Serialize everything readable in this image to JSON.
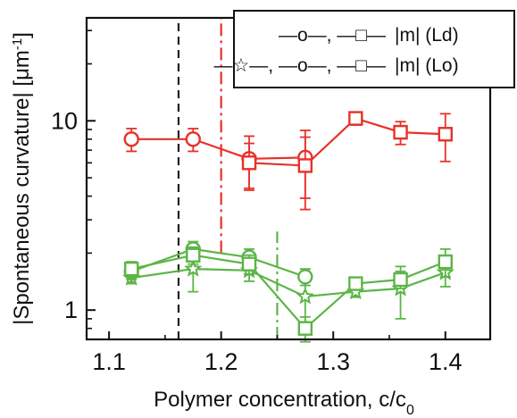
{
  "chart_data": {
    "type": "line",
    "title": "",
    "xlabel": "Polymer concentration, c/c",
    "xlabel_subscript": "0",
    "ylabel": "|Spontaneous curvature| [μm",
    "ylabel_superscript": "-1",
    "ylabel_close": "]",
    "xlim": [
      1.08,
      1.44
    ],
    "ylim": [
      0.7,
      35
    ],
    "y_scale": "log",
    "x_ticks": [
      1.1,
      1.2,
      1.3,
      1.4
    ],
    "x_tick_labels": [
      "1.1",
      "1.2",
      "1.3",
      "1.4"
    ],
    "y_ticks": [
      1,
      10
    ],
    "y_tick_labels": [
      "1",
      "10"
    ],
    "grid": false,
    "legend_position": "top-right",
    "legend": [
      {
        "symbols_text": "—o—, —□—",
        "label": "|m| (Ld)",
        "color": "#e8312a"
      },
      {
        "symbols_text": "—☆—, —o—, —□—",
        "label": "|m| (Lo)",
        "color": "#5cb547"
      }
    ],
    "vertical_lines": [
      {
        "x": 1.162,
        "color": "#222222",
        "style": "dashed",
        "y_from": 0.7,
        "y_to": 35
      },
      {
        "x": 1.2,
        "color": "#e8312a",
        "style": "dashdot",
        "y_from": 2.0,
        "y_to": 35
      },
      {
        "x": 1.25,
        "color": "#5cb547",
        "style": "dashdot",
        "y_from": 0.7,
        "y_to": 2.6
      }
    ],
    "series": [
      {
        "marker": "circle",
        "color": "#e8312a",
        "x": [
          1.12,
          1.175,
          1.225,
          1.275
        ],
        "y": [
          8.0,
          8.0,
          6.3,
          6.4
        ],
        "err": [
          1.1,
          1.1,
          2.0,
          2.5
        ]
      },
      {
        "marker": "square",
        "color": "#e8312a",
        "x": [
          1.225,
          1.275,
          1.32,
          1.36,
          1.4
        ],
        "y": [
          6.0,
          5.8,
          10.3,
          8.7,
          8.5
        ],
        "err": [
          1.6,
          2.4,
          0.8,
          1.2,
          2.4
        ]
      },
      {
        "marker": "star",
        "color": "#5cb547",
        "x": [
          1.12,
          1.175,
          1.225,
          1.275,
          1.32,
          1.36,
          1.4
        ],
        "y": [
          1.48,
          1.65,
          1.62,
          1.18,
          1.25,
          1.3,
          1.58
        ],
        "err": [
          0.1,
          0.4,
          0.2,
          0.35,
          0.08,
          0.4,
          0.25
        ]
      },
      {
        "marker": "circle",
        "color": "#5cb547",
        "x": [
          1.12,
          1.175,
          1.225,
          1.275
        ],
        "y": [
          1.6,
          2.1,
          1.9,
          1.5
        ],
        "err": [
          0.15,
          0.2,
          0.2,
          0.15
        ]
      },
      {
        "marker": "square",
        "color": "#5cb547",
        "x": [
          1.12,
          1.175,
          1.225,
          1.275,
          1.32,
          1.36,
          1.4
        ],
        "y": [
          1.65,
          1.95,
          1.75,
          0.8,
          1.38,
          1.45,
          1.8
        ],
        "err": [
          0.15,
          0.2,
          0.2,
          0.12,
          0.1,
          0.15,
          0.3
        ]
      }
    ]
  }
}
